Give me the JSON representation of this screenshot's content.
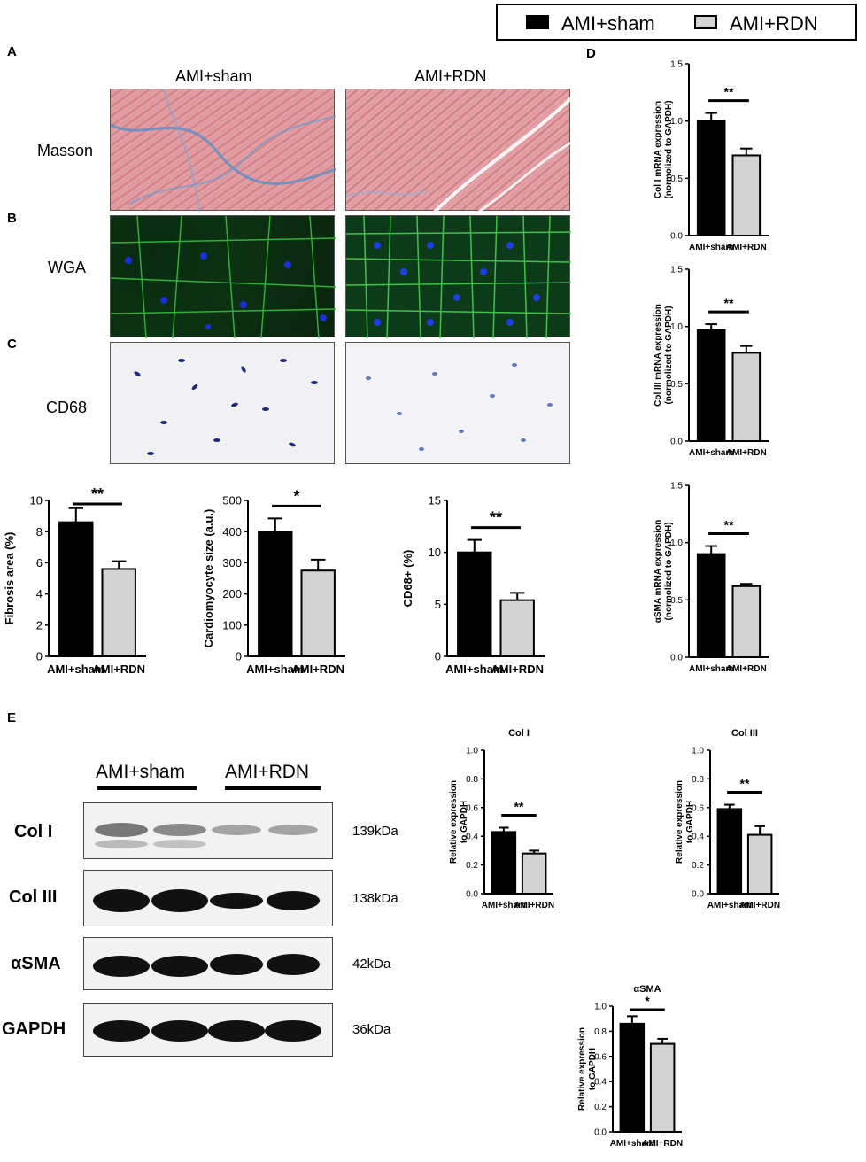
{
  "legend": {
    "items": [
      {
        "label": "AMI+sham",
        "color": "#000000"
      },
      {
        "label": "AMI+RDN",
        "color": "#d3d3d3"
      }
    ]
  },
  "panels": {
    "A": "A",
    "B": "B",
    "C": "C",
    "D": "D",
    "E": "E"
  },
  "histology": {
    "columns": [
      "AMI+sham",
      "AMI+RDN"
    ],
    "rows": [
      "Masson",
      "WGA",
      "CD68"
    ]
  },
  "western_blot": {
    "groups": [
      "AMI+sham",
      "AMI+RDN"
    ],
    "bands": [
      {
        "label": "Col I",
        "kda": "139kDa"
      },
      {
        "label": "Col III",
        "kda": "138kDa"
      },
      {
        "label": "αSMA",
        "kda": "42kDa"
      },
      {
        "label": "GAPDH",
        "kda": "36kDa"
      }
    ]
  },
  "chart_data": [
    {
      "id": "fibrosis",
      "type": "bar",
      "categories": [
        "AMI+sham",
        "AMI+RDN"
      ],
      "values": [
        8.6,
        5.6
      ],
      "errors": [
        0.9,
        0.5
      ],
      "ylabel": "Fibrosis area (%)",
      "ylim": [
        0,
        10
      ],
      "yticks": [
        "0",
        "2",
        "4",
        "6",
        "8",
        "10"
      ],
      "sig": "**",
      "colors": [
        "#000000",
        "#d3d3d3"
      ]
    },
    {
      "id": "cardiomyocyte",
      "type": "bar",
      "categories": [
        "AMI+sham",
        "AMI+RDN"
      ],
      "values": [
        400,
        275
      ],
      "errors": [
        42,
        35
      ],
      "ylabel": "Cardiomyocyte size (a.u.)",
      "ylim": [
        0,
        500
      ],
      "yticks": [
        "0",
        "100",
        "200",
        "300",
        "400",
        "500"
      ],
      "sig": "*",
      "colors": [
        "#000000",
        "#d3d3d3"
      ]
    },
    {
      "id": "cd68",
      "type": "bar",
      "categories": [
        "AMI+sham",
        "AMI+RDN"
      ],
      "values": [
        10,
        5.4
      ],
      "errors": [
        1.2,
        0.7
      ],
      "ylabel": "CD68+ (%)",
      "ylim": [
        0,
        15
      ],
      "yticks": [
        "0",
        "5",
        "10",
        "15"
      ],
      "sig": "**",
      "colors": [
        "#000000",
        "#d3d3d3"
      ]
    },
    {
      "id": "col1_mrna",
      "type": "bar",
      "categories": [
        "AMI+sham",
        "AMI+RDN"
      ],
      "values": [
        1.0,
        0.7
      ],
      "errors": [
        0.07,
        0.06
      ],
      "ylabel": "Col I  mRNA expression",
      "ylabel2": "(normolized to GAPDH)",
      "ylim": [
        0,
        1.5
      ],
      "yticks": [
        "0.0",
        "0.5",
        "1.0",
        "1.5"
      ],
      "sig": "**",
      "colors": [
        "#000000",
        "#d3d3d3"
      ]
    },
    {
      "id": "col3_mrna",
      "type": "bar",
      "categories": [
        "AMI+sham",
        "AMI+RDN"
      ],
      "values": [
        0.97,
        0.77
      ],
      "errors": [
        0.05,
        0.06
      ],
      "ylabel": "Col III  mRNA expression",
      "ylabel2": "(normolized to GAPDH)",
      "ylim": [
        0,
        1.5
      ],
      "yticks": [
        "0.0",
        "0.5",
        "1.0",
        "1.5"
      ],
      "sig": "**",
      "colors": [
        "#000000",
        "#d3d3d3"
      ]
    },
    {
      "id": "asma_mrna",
      "type": "bar",
      "categories": [
        "AMI+sham",
        "AMI+RDN"
      ],
      "values": [
        0.9,
        0.62
      ],
      "errors": [
        0.07,
        0.02
      ],
      "ylabel": "αSMA mRNA expression",
      "ylabel2": "(normolized to GAPDH)",
      "ylim": [
        0,
        1.5
      ],
      "yticks": [
        "0.0",
        "0.5",
        "1.0",
        "1.5"
      ],
      "sig": "**",
      "colors": [
        "#000000",
        "#d3d3d3"
      ]
    },
    {
      "id": "col1_wb",
      "type": "bar",
      "title": "Col I",
      "categories": [
        "AMI+sham",
        "AMI+RDN"
      ],
      "values": [
        0.43,
        0.28
      ],
      "errors": [
        0.03,
        0.02
      ],
      "ylabel": "Relative expression",
      "ylabel2": "to GAPDH",
      "ylim": [
        0,
        1.0
      ],
      "yticks": [
        "0.0",
        "0.2",
        "0.4",
        "0.6",
        "0.8",
        "1.0"
      ],
      "sig": "**",
      "colors": [
        "#000000",
        "#d3d3d3"
      ]
    },
    {
      "id": "col3_wb",
      "type": "bar",
      "title": "Col III",
      "categories": [
        "AMI+sham",
        "AMI+RDN"
      ],
      "values": [
        0.59,
        0.41
      ],
      "errors": [
        0.03,
        0.06
      ],
      "ylabel": "Relative expression",
      "ylabel2": "to GAPDH",
      "ylim": [
        0,
        1.0
      ],
      "yticks": [
        "0.0",
        "0.2",
        "0.4",
        "0.6",
        "0.8",
        "1.0"
      ],
      "sig": "**",
      "colors": [
        "#000000",
        "#d3d3d3"
      ]
    },
    {
      "id": "asma_wb",
      "type": "bar",
      "title": "αSMA",
      "categories": [
        "AMI+sham",
        "AMI+RDN"
      ],
      "values": [
        0.86,
        0.7
      ],
      "errors": [
        0.06,
        0.04
      ],
      "ylabel": "Relative expression",
      "ylabel2": "to GAPDH",
      "ylim": [
        0,
        1.0
      ],
      "yticks": [
        "0.0",
        "0.2",
        "0.4",
        "0.6",
        "0.8",
        "1.0"
      ],
      "sig": "*",
      "colors": [
        "#000000",
        "#d3d3d3"
      ]
    }
  ]
}
